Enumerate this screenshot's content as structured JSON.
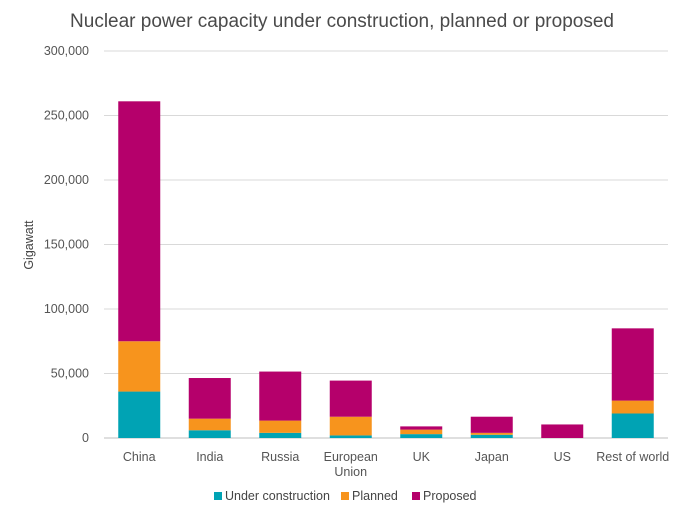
{
  "chart_data": {
    "type": "bar",
    "stacked": true,
    "title": "Nuclear power capacity under construction, planned or proposed",
    "xlabel": "",
    "ylabel": "Gigawatt",
    "ylim": [
      0,
      300000
    ],
    "yticks": [
      "0",
      "50,000",
      "100,000",
      "150,000",
      "200,000",
      "250,000",
      "300,000"
    ],
    "grid": true,
    "legend_position": "bottom",
    "categories": [
      [
        "China"
      ],
      [
        "India"
      ],
      [
        "Russia"
      ],
      [
        "European",
        "Union"
      ],
      [
        "UK"
      ],
      [
        "Japan"
      ],
      [
        "US"
      ],
      [
        "Rest of world"
      ]
    ],
    "series": [
      {
        "name": "Under construction",
        "color": "#00a3b4",
        "values": [
          36000,
          6000,
          4000,
          2000,
          3000,
          2500,
          0,
          19000
        ]
      },
      {
        "name": "Planned",
        "color": "#f7941d",
        "values": [
          39000,
          9000,
          9500,
          14500,
          3500,
          1500,
          0,
          10000
        ]
      },
      {
        "name": "Proposed",
        "color": "#b5006b",
        "values": [
          186000,
          31500,
          38000,
          28000,
          2500,
          12500,
          10500,
          56000
        ]
      }
    ]
  }
}
